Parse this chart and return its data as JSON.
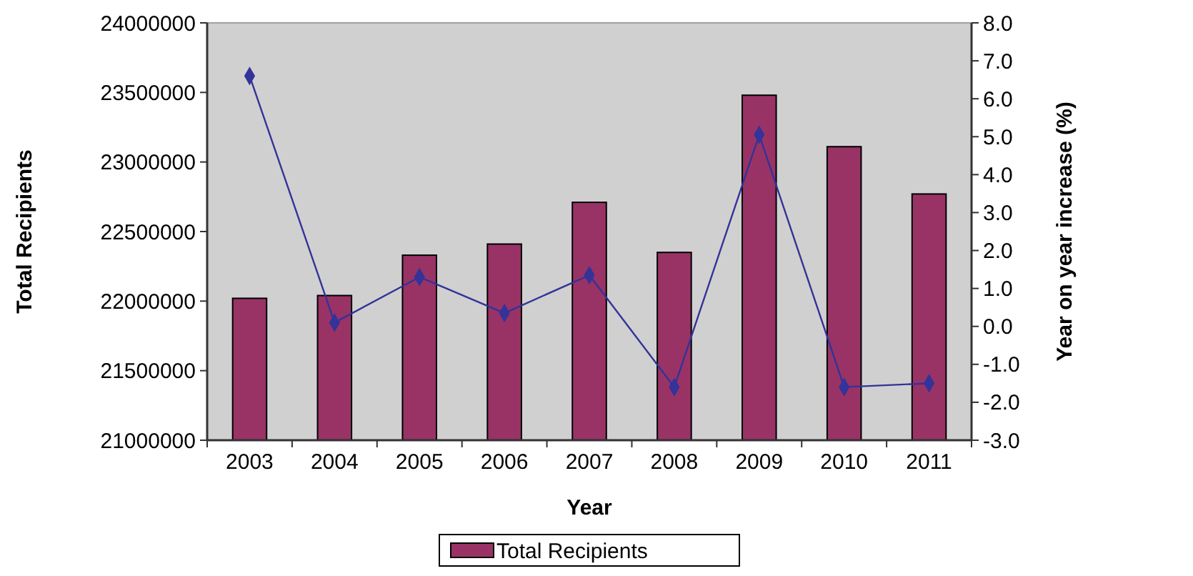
{
  "chart_data": {
    "type": "bar",
    "xlabel": "Year",
    "ylabel": "Total Recipients",
    "y2label": "Year on year increase (%)",
    "categories": [
      "2003",
      "2004",
      "2005",
      "2006",
      "2007",
      "2008",
      "2009",
      "2010",
      "2011"
    ],
    "series": [
      {
        "name": "Total Recipients",
        "color": "#993366",
        "values": [
          22020000,
          22040000,
          22330000,
          22410000,
          22710000,
          22350000,
          23480000,
          23110000,
          22770000
        ]
      },
      {
        "type": "line",
        "axis": "y2",
        "color": "#333399",
        "marker": "diamond",
        "values": [
          6.6,
          0.1,
          1.3,
          0.35,
          1.35,
          -1.6,
          5.05,
          -1.6,
          -1.5
        ]
      }
    ],
    "ylim": [
      21000000,
      24000000
    ],
    "yticks": [
      21000000,
      21500000,
      22000000,
      22500000,
      23000000,
      23500000,
      24000000
    ],
    "y2lim": [
      -3,
      8
    ],
    "y2ticks": [
      {
        "value": -3,
        "label": "-3.0"
      },
      {
        "value": -2,
        "label": "-2.0"
      },
      {
        "value": -1,
        "label": "-1.0"
      },
      {
        "value": 0,
        "label": "0.0"
      },
      {
        "value": 1,
        "label": "1.0"
      },
      {
        "value": 2,
        "label": "2.0"
      },
      {
        "value": 3,
        "label": "3.0"
      },
      {
        "value": 4,
        "label": "4.0"
      },
      {
        "value": 5,
        "label": "5.0"
      },
      {
        "value": 6,
        "label": "6.0"
      },
      {
        "value": 7,
        "label": "7.0"
      },
      {
        "value": 8,
        "label": "8.0"
      }
    ],
    "grid": false,
    "legend": "bottom"
  }
}
